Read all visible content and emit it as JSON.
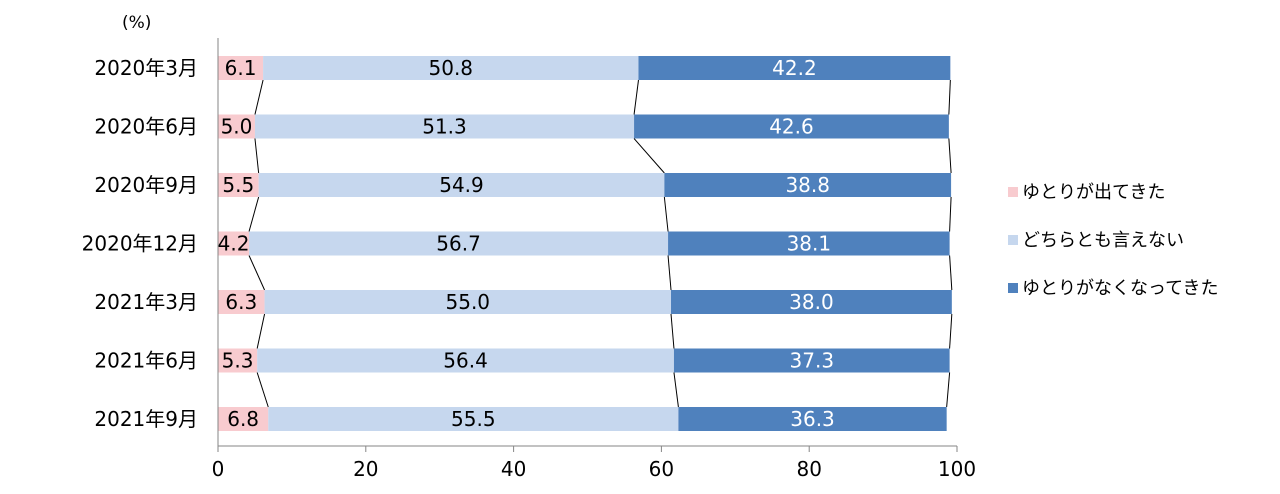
{
  "chart_data": {
    "type": "bar",
    "orientation": "horizontal",
    "stacked": true,
    "unit_label": "(%)",
    "categories": [
      "2020年3月",
      "2020年6月",
      "2020年9月",
      "2020年12月",
      "2021年3月",
      "2021年6月",
      "2021年9月"
    ],
    "series": [
      {
        "name": "ゆとりが出てきた",
        "color": "#f8cbcf",
        "label_color": "#000000",
        "values": [
          6.1,
          5.0,
          5.5,
          4.2,
          6.3,
          5.3,
          6.8
        ]
      },
      {
        "name": "どちらとも言えない",
        "color": "#c6d7ee",
        "label_color": "#000000",
        "values": [
          50.8,
          51.3,
          54.9,
          56.7,
          55.0,
          56.4,
          55.5
        ]
      },
      {
        "name": "ゆとりがなくなってきた",
        "color": "#4f81bd",
        "label_color": "#ffffff",
        "values": [
          42.2,
          42.6,
          38.8,
          38.1,
          38.0,
          37.3,
          36.3
        ]
      }
    ],
    "value_labels": [
      [
        "6.1",
        "5.0",
        "5.5",
        "4.2",
        "6.3",
        "5.3",
        "6.8"
      ],
      [
        "50.8",
        "51.3",
        "54.9",
        "56.7",
        "55.0",
        "56.4",
        "55.5"
      ],
      [
        "42.2",
        "42.6",
        "38.8",
        "38.1",
        "38.0",
        "37.3",
        "36.3"
      ]
    ],
    "xlim": [
      0,
      100
    ],
    "xticks": [
      0,
      20,
      40,
      60,
      80,
      100
    ],
    "xtick_labels": [
      "0",
      "20",
      "40",
      "60",
      "80",
      "100"
    ],
    "series_lines": true,
    "grid": false,
    "legend_position": "right"
  }
}
